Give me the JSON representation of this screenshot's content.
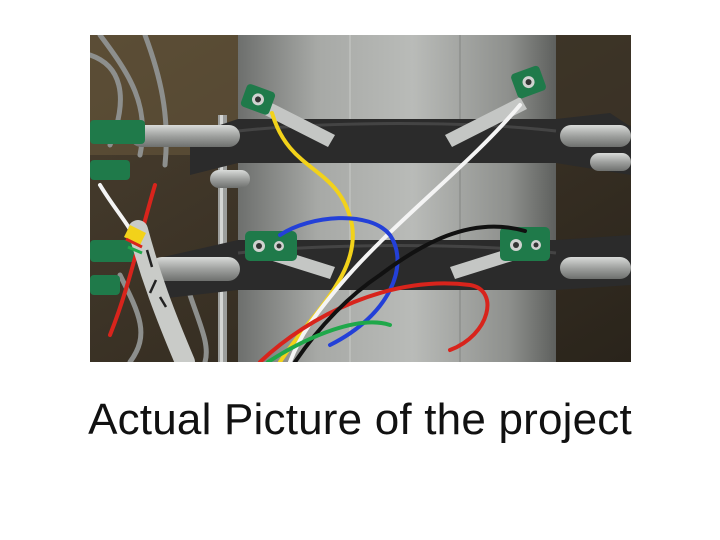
{
  "slide": {
    "caption": "Actual Picture of the project",
    "photo_alt": "Pipe with two clamp rings holding green sensor probes wired with colored leads"
  },
  "colors": {
    "background": "#ffffff",
    "caption_text": "#111111",
    "pipe": "#9a9c9a",
    "clamp": "#2b2b2b",
    "probe_green": "#1f7a4a",
    "wire_yellow": "#f2d21a",
    "wire_white": "#f4f4f4",
    "wire_blue": "#2340d8",
    "wire_red": "#d8241c",
    "wire_black": "#111111",
    "wire_green": "#1fa84a"
  }
}
